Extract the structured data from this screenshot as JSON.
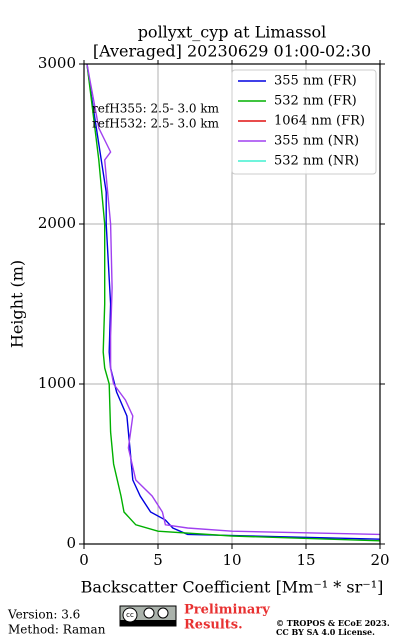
{
  "chart_data": {
    "type": "line",
    "title": "pollyxt_cyp at Limassol",
    "subtitle": "[Averaged] 20230629 01:00-02:30",
    "xlabel": "Backscatter Coefficient [Mm⁻¹ * sr⁻¹]",
    "ylabel": "Height (m)",
    "xlim": [
      0,
      20
    ],
    "xticks": [
      0,
      5,
      10,
      15,
      20
    ],
    "ylim": [
      0,
      3000
    ],
    "yticks": [
      0,
      1000,
      2000,
      3000
    ],
    "grid": true,
    "legend": "upper right",
    "annotations": [
      "refH355:  2.5- 3.0 km",
      "refH532:  2.5- 3.0 km"
    ],
    "series": [
      {
        "name": "355 nm (FR)",
        "color": "#0000e0",
        "x": [
          20,
          7,
          6,
          5.5,
          4.5,
          3.8,
          3.3,
          3.1,
          2.9,
          2.2,
          1.8,
          1.7,
          1.8,
          1.5,
          1.5,
          1.0,
          0.5,
          0.2
        ],
        "y": [
          30,
          60,
          100,
          150,
          200,
          300,
          400,
          600,
          800,
          950,
          1100,
          1200,
          1500,
          2000,
          2200,
          2500,
          2800,
          3000
        ]
      },
      {
        "name": "532 nm (FR)",
        "color": "#00b000",
        "x": [
          20,
          10,
          5,
          3.5,
          2.7,
          2.5,
          2.0,
          1.8,
          1.7,
          1.4,
          1.3,
          1.4,
          1.4,
          1.0,
          0.6,
          0.2
        ],
        "y": [
          20,
          50,
          80,
          120,
          200,
          300,
          500,
          700,
          1000,
          1100,
          1200,
          1500,
          2000,
          2400,
          2700,
          3000
        ]
      },
      {
        "name": "1064 nm (FR)",
        "color": "#e01010",
        "x": [],
        "y": []
      },
      {
        "name": "355 nm (NR)",
        "color": "#a040f0",
        "x": [
          20,
          15,
          10,
          7,
          5.5,
          5.3,
          4.6,
          3.5,
          3.0,
          3.3,
          2.8,
          2.0,
          1.8,
          1.8,
          1.9,
          1.8,
          1.4,
          1.8,
          1.0,
          0.4,
          0.2
        ],
        "y": [
          60,
          70,
          80,
          100,
          120,
          200,
          300,
          400,
          600,
          800,
          900,
          1000,
          1100,
          1300,
          1600,
          2000,
          2400,
          2450,
          2600,
          2900,
          3000
        ]
      },
      {
        "name": "532 nm (NR)",
        "color": "#40f0d0",
        "x": [],
        "y": []
      }
    ]
  },
  "footer": {
    "version": "Version: 3.6",
    "method": "Method: Raman",
    "preliminary": [
      "Preliminary",
      "Results."
    ],
    "license": [
      "© TROPOS & ECoE 2023.",
      "CC BY SA 4.0 License."
    ]
  }
}
